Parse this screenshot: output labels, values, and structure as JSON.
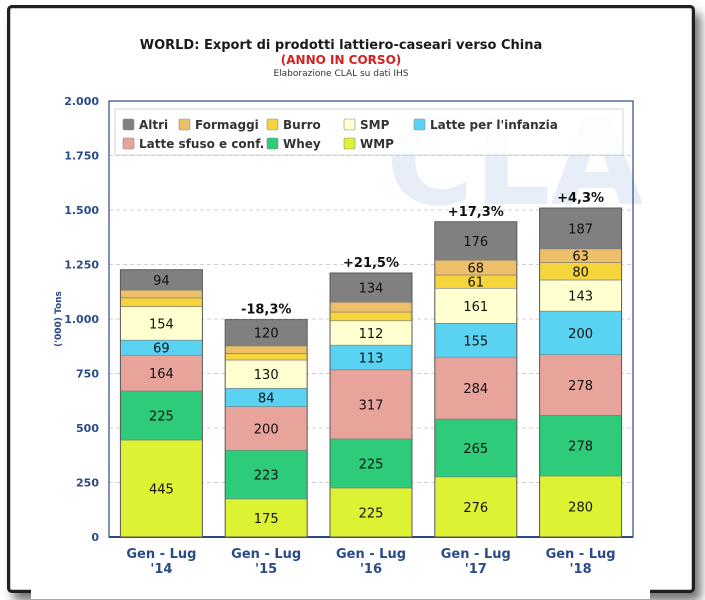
{
  "chart_data": {
    "type": "bar",
    "stacked": true,
    "title": "WORLD: Export di prodotti lattiero-caseari verso China",
    "subtitle": "(ANNO IN CORSO)",
    "credit": "Elaborazione CLAL su dati IHS",
    "watermark": "CLAL",
    "ylabel": "('000) Tons",
    "ylim": [
      0,
      2000
    ],
    "yticks": [
      0,
      250,
      500,
      750,
      1000,
      1250,
      1500,
      1750,
      2000
    ],
    "ytick_labels": [
      "0",
      "250",
      "500",
      "750",
      "1.000",
      "1.250",
      "1.500",
      "1.750",
      "2.000"
    ],
    "categories": [
      {
        "period": "Gen - Lug",
        "year": "'14"
      },
      {
        "period": "Gen - Lug",
        "year": "'15"
      },
      {
        "period": "Gen - Lug",
        "year": "'16"
      },
      {
        "period": "Gen - Lug",
        "year": "'17"
      },
      {
        "period": "Gen - Lug",
        "year": "'18"
      }
    ],
    "changes": [
      "",
      "-18,3%",
      "+21,5%",
      "+17,3%",
      "+4,3%"
    ],
    "series": [
      {
        "name": "WMP",
        "color": "#ddf233",
        "values": [
          445,
          175,
          225,
          276,
          280
        ],
        "labels": [
          "445",
          "175",
          "225",
          "276",
          "280"
        ]
      },
      {
        "name": "Whey",
        "color": "#2ecb7a",
        "values": [
          225,
          223,
          225,
          265,
          278
        ],
        "labels": [
          "225",
          "223",
          "225",
          "265",
          "278"
        ]
      },
      {
        "name": "Latte sfuso e conf.",
        "color": "#e8a39a",
        "values": [
          164,
          200,
          317,
          284,
          278
        ],
        "labels": [
          "164",
          "200",
          "317",
          "284",
          "278"
        ]
      },
      {
        "name": "Latte per l'infanzia",
        "color": "#5ad3f2",
        "values": [
          69,
          84,
          113,
          155,
          200
        ],
        "labels": [
          "69",
          "84",
          "113",
          "155",
          "200"
        ]
      },
      {
        "name": "SMP",
        "color": "#ffffcf",
        "values": [
          154,
          130,
          112,
          161,
          143
        ],
        "labels": [
          "154",
          "130",
          "112",
          "161",
          "143"
        ]
      },
      {
        "name": "Burro",
        "color": "#f5d43c",
        "values": [
          40,
          30,
          40,
          61,
          80
        ],
        "labels": [
          "",
          "",
          "",
          "61",
          "80"
        ]
      },
      {
        "name": "Formaggi",
        "color": "#eebf6b",
        "values": [
          35,
          35,
          45,
          68,
          63
        ],
        "labels": [
          "",
          "",
          "",
          "68",
          "63"
        ]
      },
      {
        "name": "Altri",
        "color": "#808080",
        "values": [
          94,
          120,
          134,
          176,
          187
        ],
        "labels": [
          "94",
          "120",
          "134",
          "176",
          "187"
        ]
      }
    ],
    "legend_order": [
      "Altri",
      "Formaggi",
      "Burro",
      "SMP",
      "Latte per l'infanzia",
      "Latte sfuso e conf.",
      "Whey",
      "WMP"
    ],
    "legend_position": "top"
  }
}
